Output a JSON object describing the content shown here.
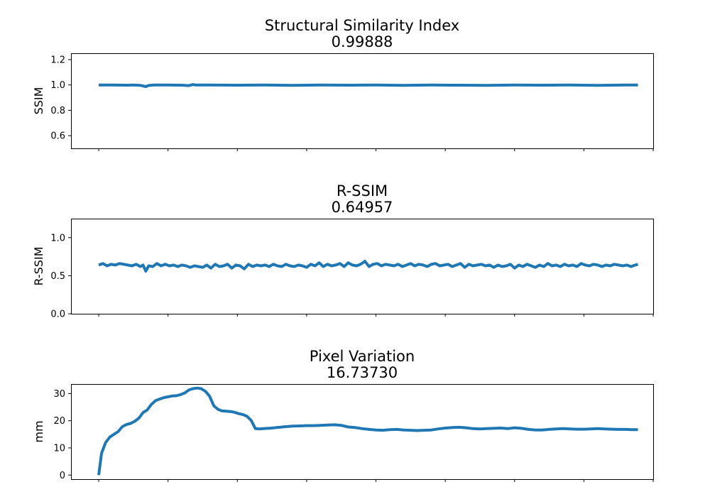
{
  "chart_data": [
    {
      "type": "line",
      "title": "Structural Similarity Index",
      "subtitle": "0.99888",
      "xlabel": "",
      "ylabel": "SSIM",
      "ylim": [
        0.5,
        1.25
      ],
      "xlim": [
        -20,
        400
      ],
      "yticks": [
        0.6,
        0.8,
        1.0,
        1.2
      ],
      "ytick_labels": [
        "0.6",
        "0.8",
        "1.0",
        "1.2"
      ],
      "xticks": [
        0,
        50,
        100,
        150,
        200,
        250,
        300,
        350,
        400
      ],
      "color": "#1f77b4",
      "series": [
        {
          "x": [
            0,
            10,
            20,
            25,
            30,
            34,
            36,
            40,
            50,
            60,
            65,
            68,
            70,
            80,
            100,
            120,
            140,
            160,
            180,
            200,
            220,
            240,
            260,
            280,
            300,
            320,
            340,
            360,
            380,
            389
          ],
          "values": [
            0.999,
            1.0,
            0.998,
            0.999,
            0.997,
            0.987,
            0.996,
            0.999,
            0.999,
            0.998,
            0.995,
            1.003,
            0.999,
            0.999,
            0.998,
            0.999,
            0.997,
            0.999,
            0.998,
            0.999,
            0.997,
            0.999,
            0.998,
            0.997,
            0.999,
            0.998,
            0.999,
            0.997,
            0.999,
            0.999
          ]
        }
      ]
    },
    {
      "type": "line",
      "title": "R-SSIM",
      "subtitle": "0.64957",
      "xlabel": "",
      "ylabel": "R-SSIM",
      "ylim": [
        0.0,
        1.25
      ],
      "xlim": [
        -20,
        400
      ],
      "yticks": [
        0.0,
        0.5,
        1.0
      ],
      "ytick_labels": [
        "0.0",
        "0.5",
        "1.0"
      ],
      "xticks": [
        0,
        50,
        100,
        150,
        200,
        250,
        300,
        350,
        400
      ],
      "color": "#1f77b4",
      "series": [
        {
          "x": [
            0,
            3,
            6,
            9,
            12,
            15,
            18,
            21,
            24,
            27,
            30,
            32,
            34,
            36,
            39,
            42,
            45,
            48,
            51,
            54,
            57,
            60,
            63,
            66,
            69,
            72,
            75,
            78,
            81,
            84,
            87,
            90,
            93,
            96,
            99,
            102,
            105,
            108,
            111,
            114,
            117,
            120,
            123,
            126,
            129,
            132,
            135,
            138,
            141,
            144,
            147,
            150,
            153,
            156,
            159,
            162,
            165,
            168,
            171,
            174,
            177,
            180,
            183,
            186,
            189,
            192,
            195,
            198,
            201,
            204,
            207,
            210,
            213,
            216,
            219,
            222,
            225,
            228,
            231,
            234,
            237,
            240,
            243,
            246,
            249,
            252,
            255,
            258,
            261,
            264,
            267,
            270,
            273,
            276,
            279,
            282,
            285,
            288,
            291,
            294,
            297,
            300,
            303,
            306,
            309,
            312,
            315,
            318,
            321,
            324,
            327,
            330,
            333,
            336,
            339,
            342,
            345,
            348,
            351,
            354,
            357,
            360,
            363,
            366,
            369,
            372,
            375,
            378,
            381,
            384,
            387,
            389
          ],
          "values": [
            0.64,
            0.66,
            0.63,
            0.65,
            0.64,
            0.66,
            0.65,
            0.64,
            0.63,
            0.65,
            0.62,
            0.64,
            0.56,
            0.63,
            0.62,
            0.66,
            0.63,
            0.65,
            0.63,
            0.64,
            0.62,
            0.64,
            0.63,
            0.61,
            0.63,
            0.62,
            0.61,
            0.64,
            0.6,
            0.65,
            0.62,
            0.63,
            0.65,
            0.6,
            0.64,
            0.63,
            0.59,
            0.65,
            0.62,
            0.64,
            0.63,
            0.64,
            0.62,
            0.65,
            0.63,
            0.62,
            0.65,
            0.63,
            0.62,
            0.64,
            0.63,
            0.61,
            0.65,
            0.63,
            0.67,
            0.62,
            0.65,
            0.63,
            0.64,
            0.66,
            0.62,
            0.67,
            0.64,
            0.63,
            0.65,
            0.69,
            0.62,
            0.65,
            0.66,
            0.63,
            0.65,
            0.64,
            0.63,
            0.65,
            0.62,
            0.64,
            0.66,
            0.63,
            0.65,
            0.64,
            0.62,
            0.65,
            0.66,
            0.63,
            0.64,
            0.65,
            0.62,
            0.64,
            0.66,
            0.61,
            0.65,
            0.63,
            0.64,
            0.65,
            0.63,
            0.64,
            0.61,
            0.64,
            0.62,
            0.63,
            0.65,
            0.6,
            0.64,
            0.62,
            0.65,
            0.63,
            0.61,
            0.64,
            0.62,
            0.66,
            0.63,
            0.64,
            0.62,
            0.65,
            0.63,
            0.64,
            0.62,
            0.66,
            0.64,
            0.63,
            0.65,
            0.64,
            0.62,
            0.64,
            0.63,
            0.65,
            0.64,
            0.63,
            0.64,
            0.62,
            0.64,
            0.65
          ]
        }
      ]
    },
    {
      "type": "line",
      "title": "Pixel Variation",
      "subtitle": "16.73730",
      "xlabel": "",
      "ylabel": "mm",
      "ylim": [
        -1.5,
        33.5
      ],
      "xlim": [
        -20,
        400
      ],
      "yticks": [
        0,
        10,
        20,
        30
      ],
      "ytick_labels": [
        "0",
        "10",
        "20",
        "30"
      ],
      "xticks": [
        0,
        50,
        100,
        150,
        200,
        250,
        300,
        350,
        400
      ],
      "color": "#1f77b4",
      "series": [
        {
          "x": [
            0,
            2,
            5,
            8,
            11,
            14,
            17,
            20,
            23,
            26,
            29,
            32,
            35,
            38,
            41,
            44,
            47,
            50,
            53,
            56,
            59,
            62,
            65,
            68,
            71,
            74,
            77,
            80,
            83,
            86,
            89,
            92,
            95,
            98,
            101,
            104,
            107,
            110,
            113,
            116,
            119,
            122,
            125,
            128,
            131,
            134,
            137,
            140,
            145,
            150,
            155,
            160,
            165,
            170,
            175,
            180,
            185,
            190,
            195,
            200,
            205,
            210,
            215,
            220,
            225,
            230,
            235,
            240,
            245,
            250,
            255,
            260,
            265,
            270,
            275,
            280,
            285,
            290,
            295,
            300,
            305,
            310,
            315,
            320,
            325,
            330,
            335,
            340,
            345,
            350,
            355,
            360,
            365,
            370,
            375,
            380,
            385,
            389
          ],
          "values": [
            0,
            8,
            12,
            14,
            15,
            16,
            17.8,
            18.6,
            19,
            19.8,
            21,
            23,
            24,
            26,
            27.4,
            28,
            28.5,
            28.8,
            29.1,
            29.2,
            29.6,
            30.2,
            31.3,
            31.8,
            32,
            31.8,
            30.8,
            29,
            25.5,
            24.2,
            23.6,
            23.5,
            23.4,
            23.1,
            22.6,
            22.3,
            21.6,
            20.1,
            17.1,
            17,
            17.1,
            17.2,
            17.3,
            17.5,
            17.6,
            17.8,
            17.9,
            18,
            18.1,
            18.2,
            18.2,
            18.3,
            18.4,
            18.5,
            18.3,
            17.7,
            17.5,
            17.1,
            16.8,
            16.6,
            16.5,
            16.7,
            16.8,
            16.6,
            16.5,
            16.4,
            16.5,
            16.6,
            17,
            17.3,
            17.5,
            17.6,
            17.4,
            17.1,
            17,
            17.1,
            17.2,
            17.3,
            17.1,
            17.4,
            17.2,
            16.8,
            16.6,
            16.6,
            16.8,
            17,
            17.1,
            17,
            16.9,
            16.9,
            17,
            17.1,
            17,
            16.9,
            16.8,
            16.8,
            16.7,
            16.7
          ]
        }
      ]
    }
  ]
}
